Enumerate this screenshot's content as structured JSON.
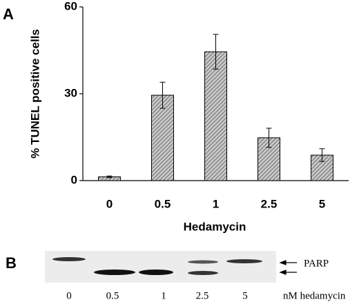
{
  "chart_data": {
    "type": "bar",
    "panel_label": "A",
    "ylabel": "% TUNEL positive cells",
    "xlabel": "Hedamycin",
    "categories": [
      "0",
      "0.5",
      "1",
      "2.5",
      "5"
    ],
    "values": [
      1.3,
      29.5,
      44.5,
      14.8,
      8.8
    ],
    "errors": [
      0.3,
      4.5,
      6,
      3.3,
      2.2
    ],
    "color": "#9a9a9a",
    "ylim": [
      0,
      60
    ],
    "yticks": [
      0,
      30,
      60
    ]
  },
  "blot": {
    "panel_label": "B",
    "protein": "PARP",
    "lanes": [
      "0",
      "0.5",
      "1",
      "2.5",
      "5"
    ],
    "unit": "nM hedamycin"
  }
}
